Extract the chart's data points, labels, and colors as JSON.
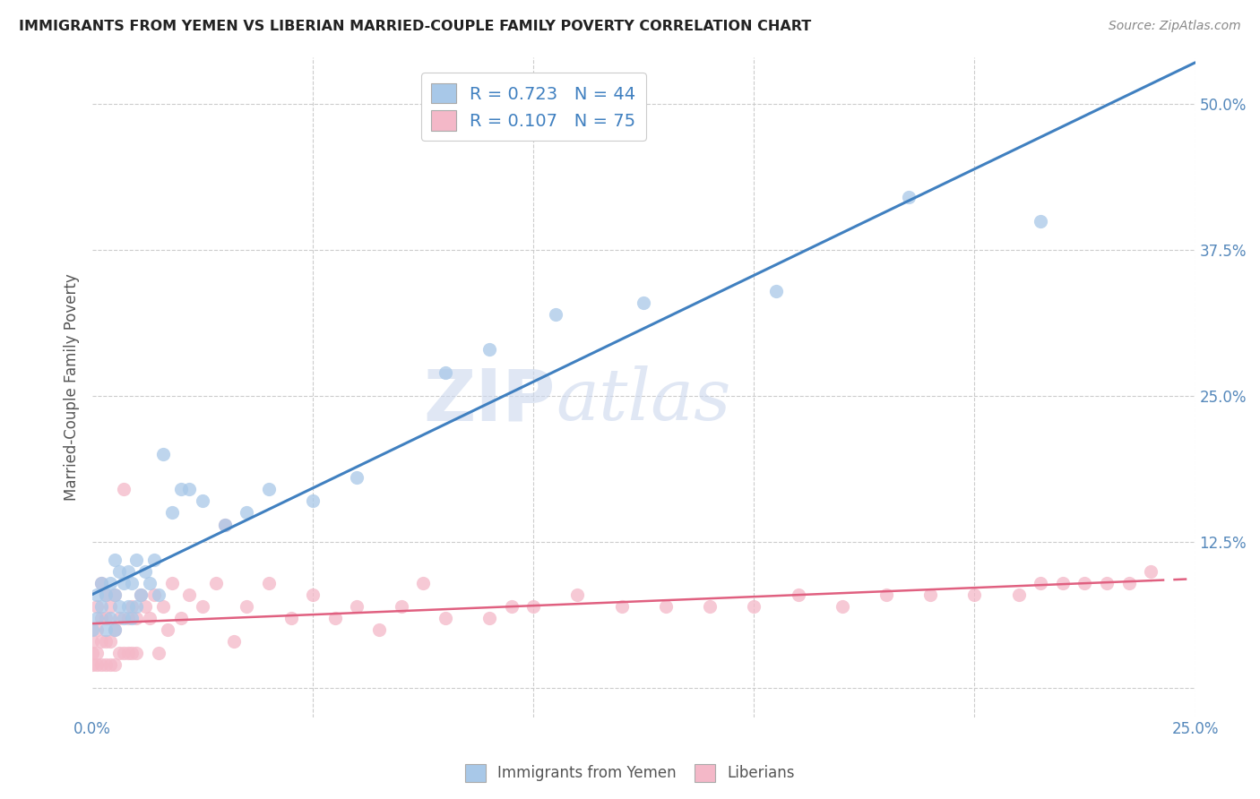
{
  "title": "IMMIGRANTS FROM YEMEN VS LIBERIAN MARRIED-COUPLE FAMILY POVERTY CORRELATION CHART",
  "source": "Source: ZipAtlas.com",
  "ylabel": "Married-Couple Family Poverty",
  "xlim": [
    0.0,
    0.25
  ],
  "ylim": [
    -0.025,
    0.54
  ],
  "blue_color": "#a8c8e8",
  "pink_color": "#f4b8c8",
  "line_blue": "#4080c0",
  "line_pink": "#e06080",
  "watermark_zip": "ZIP",
  "watermark_atlas": "atlas",
  "R_yemen": 0.723,
  "N_yemen": 44,
  "R_liberian": 0.107,
  "N_liberian": 75,
  "yemen_x": [
    0.0,
    0.001,
    0.001,
    0.002,
    0.002,
    0.003,
    0.003,
    0.004,
    0.004,
    0.005,
    0.005,
    0.005,
    0.006,
    0.006,
    0.007,
    0.007,
    0.008,
    0.008,
    0.009,
    0.009,
    0.01,
    0.01,
    0.011,
    0.012,
    0.013,
    0.014,
    0.015,
    0.016,
    0.018,
    0.02,
    0.022,
    0.025,
    0.03,
    0.035,
    0.04,
    0.05,
    0.06,
    0.08,
    0.09,
    0.105,
    0.125,
    0.155,
    0.185,
    0.215
  ],
  "yemen_y": [
    0.05,
    0.06,
    0.08,
    0.07,
    0.09,
    0.05,
    0.08,
    0.06,
    0.09,
    0.05,
    0.08,
    0.11,
    0.07,
    0.1,
    0.06,
    0.09,
    0.07,
    0.1,
    0.06,
    0.09,
    0.07,
    0.11,
    0.08,
    0.1,
    0.09,
    0.11,
    0.08,
    0.2,
    0.15,
    0.17,
    0.17,
    0.16,
    0.14,
    0.15,
    0.17,
    0.16,
    0.18,
    0.27,
    0.29,
    0.32,
    0.33,
    0.34,
    0.42,
    0.4
  ],
  "liberian_x": [
    0.0,
    0.0,
    0.0,
    0.001,
    0.001,
    0.001,
    0.001,
    0.002,
    0.002,
    0.002,
    0.002,
    0.003,
    0.003,
    0.003,
    0.003,
    0.004,
    0.004,
    0.004,
    0.005,
    0.005,
    0.005,
    0.006,
    0.006,
    0.007,
    0.007,
    0.008,
    0.008,
    0.009,
    0.009,
    0.01,
    0.01,
    0.011,
    0.012,
    0.013,
    0.014,
    0.015,
    0.016,
    0.017,
    0.018,
    0.02,
    0.022,
    0.025,
    0.028,
    0.03,
    0.032,
    0.035,
    0.04,
    0.045,
    0.05,
    0.055,
    0.06,
    0.065,
    0.07,
    0.075,
    0.08,
    0.09,
    0.095,
    0.1,
    0.11,
    0.12,
    0.13,
    0.14,
    0.15,
    0.16,
    0.17,
    0.18,
    0.19,
    0.2,
    0.21,
    0.215,
    0.22,
    0.225,
    0.23,
    0.235,
    0.24
  ],
  "liberian_y": [
    0.02,
    0.03,
    0.04,
    0.02,
    0.03,
    0.05,
    0.07,
    0.02,
    0.04,
    0.06,
    0.09,
    0.02,
    0.04,
    0.06,
    0.08,
    0.02,
    0.04,
    0.07,
    0.02,
    0.05,
    0.08,
    0.03,
    0.06,
    0.03,
    0.17,
    0.03,
    0.06,
    0.03,
    0.07,
    0.03,
    0.06,
    0.08,
    0.07,
    0.06,
    0.08,
    0.03,
    0.07,
    0.05,
    0.09,
    0.06,
    0.08,
    0.07,
    0.09,
    0.14,
    0.04,
    0.07,
    0.09,
    0.06,
    0.08,
    0.06,
    0.07,
    0.05,
    0.07,
    0.09,
    0.06,
    0.06,
    0.07,
    0.07,
    0.08,
    0.07,
    0.07,
    0.07,
    0.07,
    0.08,
    0.07,
    0.08,
    0.08,
    0.08,
    0.08,
    0.09,
    0.09,
    0.09,
    0.09,
    0.09,
    0.1
  ]
}
